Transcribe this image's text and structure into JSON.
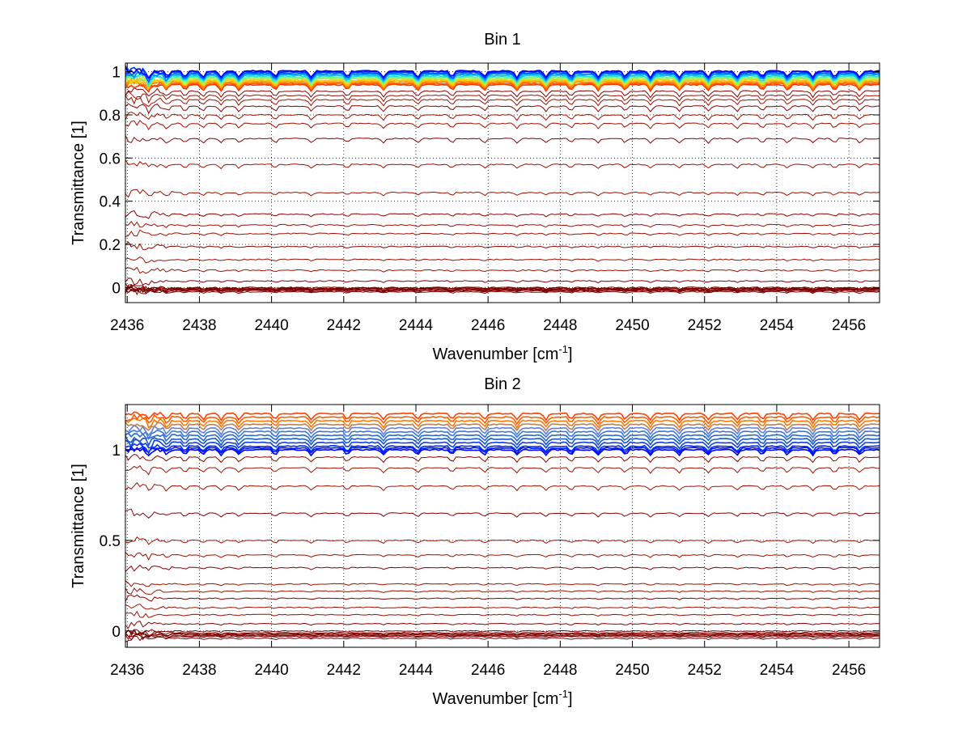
{
  "chart_data": [
    {
      "type": "line",
      "title": "Bin 1",
      "xlabel": "Wavenumber [cm",
      "xlabel_sup": "-1",
      "xlabel_end": "]",
      "ylabel": "Transmittance [1]",
      "xlim": [
        2435.95,
        2456.85
      ],
      "ylim": [
        -0.07,
        1.04
      ],
      "xticks": [
        2436,
        2438,
        2440,
        2442,
        2444,
        2446,
        2448,
        2450,
        2452,
        2454,
        2456
      ],
      "xtick_labels": [
        "2436",
        "2438",
        "2440",
        "2442",
        "2444",
        "2446",
        "2448",
        "2450",
        "2452",
        "2454",
        "2456"
      ],
      "yticks": [
        0,
        0.2,
        0.4,
        0.6,
        0.8,
        1
      ],
      "ytick_labels": [
        "0",
        "0.2",
        "0.4",
        "0.6",
        "0.8",
        "1"
      ],
      "grid": true,
      "legend": "none",
      "series_levels": {
        "baseline": [
          -0.02,
          -0.015,
          -0.012,
          -0.01,
          -0.008,
          -0.005,
          -0.003,
          0.0
        ],
        "low_red": [
          0.03,
          0.08,
          0.13,
          0.19,
          0.25,
          0.29,
          0.34,
          0.44,
          0.57,
          0.69,
          0.76,
          0.8,
          0.84,
          0.87,
          0.89,
          0.91
        ],
        "upper_band": [
          0.94,
          0.945,
          0.95,
          0.955,
          0.96,
          0.965,
          0.97,
          0.975,
          0.98,
          0.985,
          0.99,
          0.995,
          1.0,
          1.003
        ]
      },
      "colormap": [
        "#7f0000",
        "#ff0000",
        "#ff8000",
        "#ffff00",
        "#80ff80",
        "#00ffff",
        "#0080ff",
        "#0000ff",
        "#00008f"
      ]
    },
    {
      "type": "line",
      "title": "Bin 2",
      "xlabel": "Wavenumber [cm",
      "xlabel_sup": "-1",
      "xlabel_end": "]",
      "ylabel": "Transmittance [1]",
      "xlim": [
        2435.95,
        2456.85
      ],
      "ylim": [
        -0.09,
        1.25
      ],
      "xticks": [
        2436,
        2438,
        2440,
        2442,
        2444,
        2446,
        2448,
        2450,
        2452,
        2454,
        2456
      ],
      "xtick_labels": [
        "2436",
        "2438",
        "2440",
        "2442",
        "2444",
        "2446",
        "2448",
        "2450",
        "2452",
        "2454",
        "2456"
      ],
      "yticks": [
        0,
        0.5,
        1
      ],
      "ytick_labels": [
        "0",
        "0.5",
        "1"
      ],
      "grid": true,
      "legend": "none",
      "series_levels": {
        "baseline": [
          -0.04,
          -0.03,
          -0.025,
          -0.02,
          -0.015,
          -0.01,
          0.0
        ],
        "low_red": [
          0.04,
          0.09,
          0.13,
          0.18,
          0.22,
          0.26,
          0.35,
          0.42,
          0.5,
          0.65,
          0.8,
          0.9,
          0.96
        ],
        "upper_band": [
          1.0,
          1.01,
          1.02,
          1.04,
          1.06,
          1.08,
          1.1,
          1.12,
          1.14,
          1.16,
          1.18,
          1.2
        ]
      },
      "colormap": [
        "#7f0000",
        "#ff0000",
        "#ff8000",
        "#ffff00",
        "#80ff80",
        "#00ffff",
        "#0080ff",
        "#0000ff",
        "#00008f"
      ]
    }
  ]
}
